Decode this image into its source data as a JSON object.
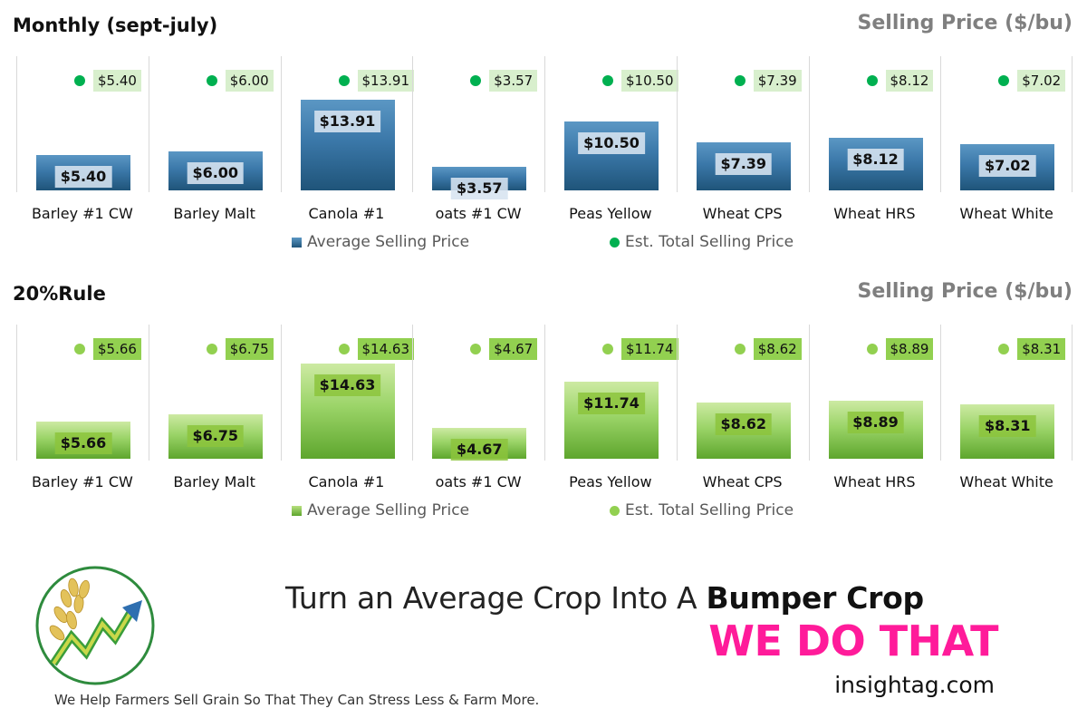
{
  "chart_data": [
    {
      "type": "bar",
      "title": "Monthly (sept-july)",
      "unit_label": "Selling Price ($/bu)",
      "categories": [
        "Barley #1 CW",
        "Barley Malt",
        "Canola #1",
        "oats #1 CW",
        "Peas Yellow",
        "Wheat CPS",
        "Wheat HRS",
        "Wheat White"
      ],
      "series": [
        {
          "name": "Average Selling Price",
          "values": [
            5.4,
            6.0,
            13.91,
            3.57,
            10.5,
            7.39,
            8.12,
            7.02
          ],
          "labels": [
            "$5.40",
            "$6.00",
            "$13.91",
            "$3.57",
            "$10.50",
            "$7.39",
            "$8.12",
            "$7.02"
          ],
          "color": "#3b78a9"
        },
        {
          "name": "Est. Total Selling Price",
          "values": [
            5.4,
            6.0,
            13.91,
            3.57,
            10.5,
            7.39,
            8.12,
            7.02
          ],
          "labels": [
            "$5.40",
            "$6.00",
            "$13.91",
            "$3.57",
            "$10.50",
            "$7.39",
            "$8.12",
            "$7.02"
          ],
          "color": "#00b050"
        }
      ],
      "ylim": [
        0,
        15
      ],
      "grid": false,
      "legend": "bottom",
      "theme": "blue"
    },
    {
      "type": "bar",
      "title": "20%Rule",
      "unit_label": "Selling Price ($/bu)",
      "categories": [
        "Barley #1 CW",
        "Barley Malt",
        "Canola #1",
        "oats #1 CW",
        "Peas Yellow",
        "Wheat CPS",
        "Wheat HRS",
        "Wheat White"
      ],
      "series": [
        {
          "name": "Average Selling Price",
          "values": [
            5.66,
            6.75,
            14.63,
            4.67,
            11.74,
            8.62,
            8.89,
            8.31
          ],
          "labels": [
            "$5.66",
            "$6.75",
            "$14.63",
            "$4.67",
            "$11.74",
            "$8.62",
            "$8.89",
            "$8.31"
          ],
          "color": "#7cc242"
        },
        {
          "name": "Est. Total Selling Price",
          "values": [
            5.66,
            6.75,
            14.63,
            4.67,
            11.74,
            8.62,
            8.89,
            8.31
          ],
          "labels": [
            "$5.66",
            "$6.75",
            "$14.63",
            "$4.67",
            "$11.74",
            "$8.62",
            "$8.89",
            "$8.31"
          ],
          "color": "#92d050"
        }
      ],
      "ylim": [
        0,
        15
      ],
      "grid": false,
      "legend": "bottom",
      "theme": "green"
    }
  ],
  "branding": {
    "tagline_regular": "Turn an Average Crop Into A",
    "tagline_bold": "Bumper Crop",
    "slogan": "WE DO THAT",
    "website": "insightag.com",
    "footer_note": "We Help Farmers Sell Grain So That They Can Stress Less & Farm More.",
    "slogan_color": "#ff1b9a",
    "logo_icon": "wheat-arrow-logo-icon"
  }
}
